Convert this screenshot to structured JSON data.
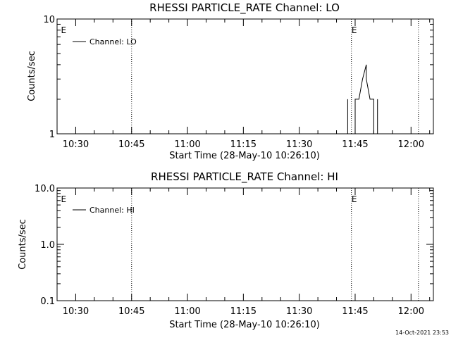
{
  "footer_timestamp": "14-Oct-2021 23:53",
  "chart_data": [
    {
      "type": "line",
      "title": "RHESSI PARTICLE_RATE Channel: LO",
      "xlabel": "Start Time (28-May-10 10:26:10)",
      "ylabel": "Counts/sec",
      "yscale": "log",
      "ylim": [
        1,
        10
      ],
      "ytick_values": [
        1,
        10
      ],
      "ytick_labels": [
        "1",
        "10"
      ],
      "xlim": [
        "10:25",
        "12:06"
      ],
      "xtick_labels": [
        "10:30",
        "10:45",
        "11:00",
        "11:15",
        "11:30",
        "11:45",
        "12:00"
      ],
      "legend": "top-left",
      "grid": false,
      "event_lines": [
        "10:45",
        "11:44",
        "12:02"
      ],
      "event_markers": [
        {
          "time": "10:26",
          "label": "E"
        },
        {
          "time": "11:44",
          "label": "E"
        }
      ],
      "series": [
        {
          "name": "Channel: LO",
          "color": "#000000",
          "points": [
            [
              "11:43",
              1
            ],
            [
              "11:43",
              2
            ],
            [
              "11:43",
              1
            ],
            [
              "11:45",
              1
            ],
            [
              "11:45",
              2
            ],
            [
              "11:46",
              2
            ],
            [
              "11:47",
              3
            ],
            [
              "11:48",
              4
            ],
            [
              "11:48",
              3
            ],
            [
              "11:49",
              2
            ],
            [
              "11:50",
              2
            ],
            [
              "11:50",
              1
            ],
            [
              "11:51",
              1
            ],
            [
              "11:51",
              2
            ],
            [
              "11:51",
              1
            ]
          ]
        }
      ]
    },
    {
      "type": "line",
      "title": "RHESSI PARTICLE_RATE Channel: HI",
      "xlabel": "Start Time (28-May-10 10:26:10)",
      "ylabel": "Counts/sec",
      "yscale": "log",
      "ylim": [
        0.1,
        10
      ],
      "ytick_values": [
        0.1,
        1,
        10
      ],
      "ytick_labels": [
        "0.1",
        "1.0",
        "10.0"
      ],
      "xlim": [
        "10:25",
        "12:06"
      ],
      "xtick_labels": [
        "10:30",
        "10:45",
        "11:00",
        "11:15",
        "11:30",
        "11:45",
        "12:00"
      ],
      "legend": "top-left",
      "grid": false,
      "event_lines": [
        "10:45",
        "11:44",
        "12:02"
      ],
      "event_markers": [
        {
          "time": "10:26",
          "label": "E"
        },
        {
          "time": "11:44",
          "label": "E"
        }
      ],
      "series": [
        {
          "name": "Channel: HI",
          "color": "#000000",
          "points": []
        }
      ]
    }
  ]
}
